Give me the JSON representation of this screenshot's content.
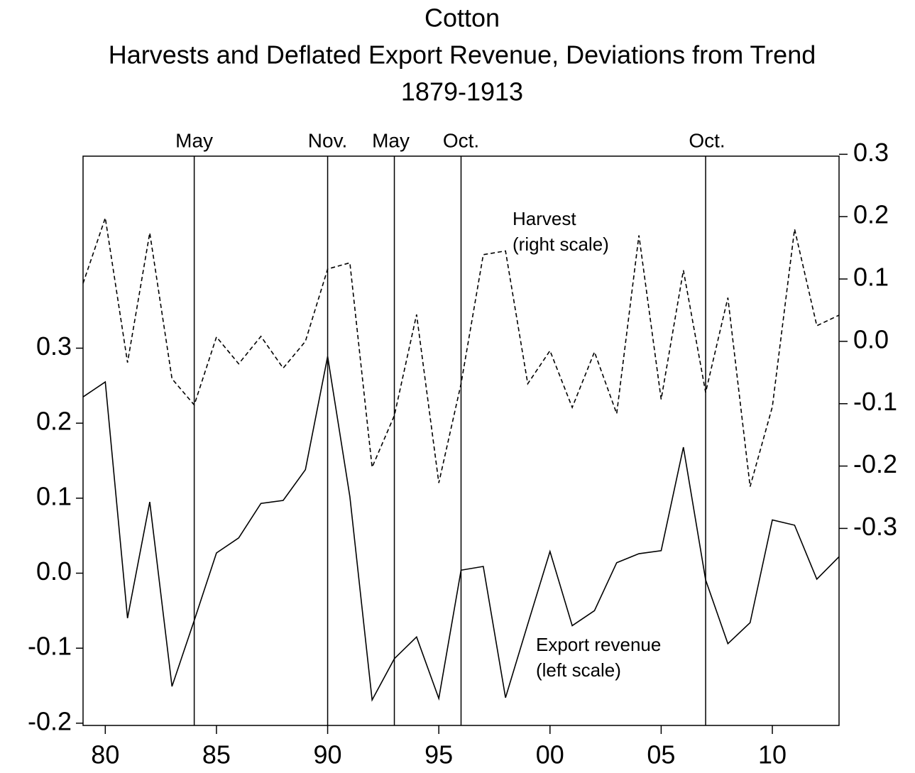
{
  "chart_data": {
    "type": "line",
    "title_lines": [
      "Cotton",
      "Harvests and Deflated Export Revenue, Deviations from Trend",
      "1879-1913"
    ],
    "x": [
      1879,
      1880,
      1881,
      1882,
      1883,
      1884,
      1885,
      1886,
      1887,
      1888,
      1889,
      1890,
      1891,
      1892,
      1893,
      1894,
      1895,
      1896,
      1897,
      1898,
      1899,
      1900,
      1901,
      1902,
      1903,
      1904,
      1905,
      1906,
      1907,
      1908,
      1909,
      1910,
      1911,
      1912,
      1913
    ],
    "series": [
      {
        "color": "#000000",
        "dash": false,
        "axis": "y",
        "values": [
          0.235,
          0.255,
          -0.06,
          0.095,
          -0.151,
          -0.063,
          0.027,
          0.047,
          0.093,
          0.097,
          0.138,
          0.289,
          0.102,
          -0.169,
          -0.114,
          -0.085,
          -0.167,
          0.004,
          0.009,
          -0.166,
          -0.068,
          0.029,
          -0.07,
          -0.05,
          0.014,
          0.026,
          0.03,
          0.168,
          -0.009,
          -0.094,
          -0.066,
          0.071,
          0.064,
          -0.008,
          0.022
        ]
      },
      {
        "color": "#000000",
        "dash": true,
        "axis": "y2",
        "values": [
          0.093,
          0.198,
          -0.034,
          0.174,
          -0.06,
          -0.102,
          0.007,
          -0.036,
          0.008,
          -0.043,
          0.0,
          0.116,
          0.126,
          -0.202,
          -0.119,
          0.043,
          -0.227,
          -0.068,
          0.139,
          0.145,
          -0.068,
          -0.015,
          -0.106,
          -0.017,
          -0.116,
          0.17,
          -0.093,
          0.114,
          -0.082,
          0.07,
          -0.233,
          -0.105,
          0.18,
          0.025,
          0.042
        ]
      }
    ],
    "annotations": [
      {
        "lines": [
          "Harvest",
          "(right scale)"
        ]
      },
      {
        "lines": [
          "Export revenue",
          "(left scale)"
        ]
      }
    ],
    "events": [
      {
        "label": "May",
        "x": 1884
      },
      {
        "label": "Nov.",
        "x": 1890
      },
      {
        "label": "May",
        "x": 1893
      },
      {
        "label": "Oct.",
        "x": 1896
      },
      {
        "label": "Oct.",
        "x": 1907
      }
    ],
    "xlim": [
      1879,
      1913
    ],
    "xticks": [
      {
        "value": 1880,
        "label": "80"
      },
      {
        "value": 1885,
        "label": "85"
      },
      {
        "value": 1890,
        "label": "90"
      },
      {
        "value": 1895,
        "label": "95"
      },
      {
        "value": 1900,
        "label": "00"
      },
      {
        "value": 1905,
        "label": "05"
      },
      {
        "value": 1910,
        "label": "10"
      }
    ],
    "ylim": [
      -0.203,
      0.556
    ],
    "yticks": [
      -0.2,
      -0.1,
      {
        "value": 0,
        "label": "0.0"
      },
      0.1,
      0.2,
      0.3
    ],
    "y2lim": [
      -0.616,
      0.297
    ],
    "y2ticks": [
      -0.3,
      -0.2,
      -0.1,
      {
        "value": 0,
        "label": "0.0"
      },
      0.1,
      0.2,
      0.3
    ]
  }
}
